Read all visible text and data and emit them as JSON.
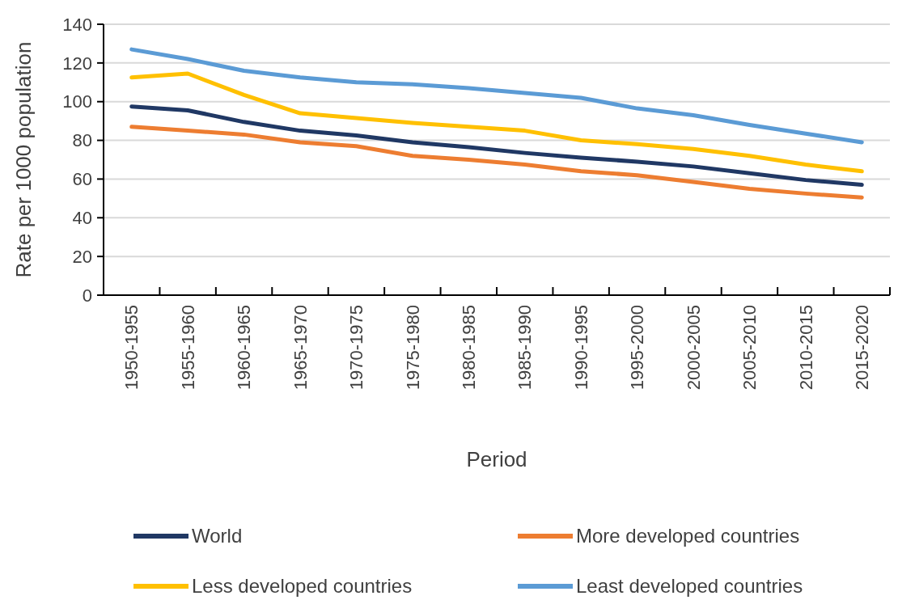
{
  "chart_data": {
    "type": "line",
    "xlabel": "Period",
    "ylabel": "Rate per 1000 population",
    "categories": [
      "1950-1955",
      "1955-1960",
      "1960-1965",
      "1965-1970",
      "1970-1975",
      "1975-1980",
      "1980-1985",
      "1985-1990",
      "1990-1995",
      "1995-2000",
      "2000-2005",
      "2005-2010",
      "2010-2015",
      "2015-2020"
    ],
    "series": [
      {
        "name": "World",
        "color": "#203864",
        "values": [
          97.5,
          95.5,
          89.5,
          85,
          82.5,
          79,
          76.5,
          73.5,
          71,
          69,
          66.5,
          63,
          59.5,
          57
        ]
      },
      {
        "name": "More developed countries",
        "color": "#ed7d31",
        "values": [
          87,
          85,
          83,
          79,
          77,
          72,
          70,
          67.5,
          64,
          62,
          58.5,
          55,
          52.5,
          50.5
        ]
      },
      {
        "name": "Less developed countries",
        "color": "#ffc000",
        "values": [
          112.5,
          114.5,
          103.5,
          94,
          91.5,
          89,
          87,
          85,
          80,
          78,
          75.5,
          72,
          67.5,
          64
        ]
      },
      {
        "name": "Least developed countries",
        "color": "#5b9bd5",
        "values": [
          127,
          122,
          116,
          112.5,
          110,
          109,
          107,
          104.5,
          102,
          96.5,
          93,
          88,
          83.5,
          79
        ]
      }
    ],
    "ylim": [
      0,
      140
    ],
    "yticks": [
      0,
      20,
      40,
      60,
      80,
      100,
      120,
      140
    ],
    "grid": "y",
    "legend": "bottom",
    "line_style": "solid",
    "marker": "none"
  }
}
